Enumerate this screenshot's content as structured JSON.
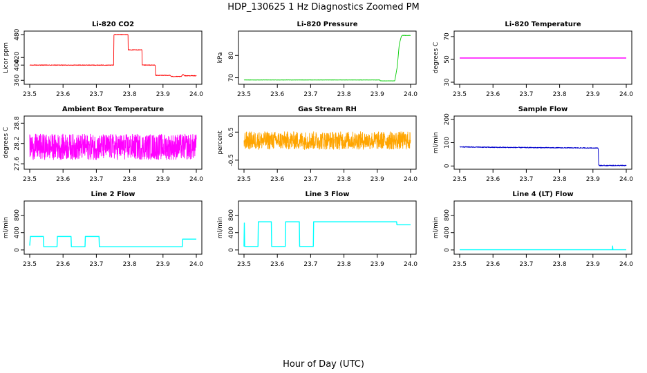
{
  "figure": {
    "title": "HDP_130625  1 Hz Diagnostics Zoomed PM",
    "xlabel": "Hour of Day (UTC)"
  },
  "chart_data": [
    {
      "type": "line",
      "title": "Li-820 CO2",
      "ylabel": "Licor ppm",
      "color": "#ff0000",
      "xlim": [
        23.5,
        24.0
      ],
      "ylim": [
        355,
        484
      ],
      "xticks": [
        23.5,
        23.6,
        23.7,
        23.8,
        23.9,
        24.0
      ],
      "xtick_labels": [
        "23.5",
        "23.6",
        "23.7",
        "23.8",
        "23.9",
        "24.0"
      ],
      "yticks": [
        360,
        400,
        420,
        480
      ],
      "ytick_labels": [
        "360",
        "400",
        "420",
        "480"
      ],
      "noise": 0.8,
      "x": [
        23.5,
        23.752,
        23.7525,
        23.795,
        23.7955,
        23.837,
        23.8375,
        23.877,
        23.8775,
        23.922,
        23.925,
        23.955,
        23.96,
        23.965,
        24.0
      ],
      "y": [
        400,
        400,
        480,
        480,
        440,
        440,
        400,
        400,
        373,
        373,
        370,
        370,
        376,
        372,
        372
      ]
    },
    {
      "type": "line",
      "title": "Li-820 Pressure",
      "ylabel": "kPa",
      "color": "#00cc00",
      "xlim": [
        23.5,
        24.0
      ],
      "ylim": [
        68,
        90
      ],
      "xticks": [
        23.5,
        23.6,
        23.7,
        23.8,
        23.9,
        24.0
      ],
      "xtick_labels": [
        "23.5",
        "23.6",
        "23.7",
        "23.8",
        "23.9",
        "24.0"
      ],
      "yticks": [
        70,
        80
      ],
      "ytick_labels": [
        "70",
        "80"
      ],
      "noise": 0.05,
      "x": [
        23.5,
        23.908,
        23.909,
        23.952,
        23.953,
        23.96,
        23.966,
        23.972,
        23.975,
        23.985,
        24.0
      ],
      "y": [
        69.0,
        69.0,
        68.6,
        68.6,
        69.0,
        75,
        85,
        88.5,
        89.0,
        89.0,
        89.0
      ]
    },
    {
      "type": "line",
      "title": "Li-820 Temperature",
      "ylabel": "degrees C",
      "color": "#ff00ff",
      "xlim": [
        23.5,
        24.0
      ],
      "ylim": [
        30,
        73
      ],
      "xticks": [
        23.5,
        23.6,
        23.7,
        23.8,
        23.9,
        24.0
      ],
      "xtick_labels": [
        "23.5",
        "23.6",
        "23.7",
        "23.8",
        "23.9",
        "24.0"
      ],
      "yticks": [
        30,
        50,
        70
      ],
      "ytick_labels": [
        "30",
        "50",
        "70"
      ],
      "noise": 0,
      "x": [
        23.5,
        24.0
      ],
      "y": [
        51.2,
        51.2
      ]
    },
    {
      "type": "line",
      "title": "Ambient Box Temperature",
      "ylabel": "degrees C",
      "color": "#ff00ff",
      "xlim": [
        23.5,
        24.0
      ],
      "ylim": [
        27.5,
        28.95
      ],
      "xticks": [
        23.5,
        23.6,
        23.7,
        23.8,
        23.9,
        24.0
      ],
      "xtick_labels": [
        "23.5",
        "23.6",
        "23.7",
        "23.8",
        "23.9",
        "24.0"
      ],
      "yticks": [
        27.6,
        28.2,
        28.8
      ],
      "ytick_labels": [
        "27.6",
        "28.2",
        "28.8"
      ],
      "noise": 0.38,
      "x": [
        23.5,
        24.0
      ],
      "y": [
        28.1,
        28.1
      ]
    },
    {
      "type": "line",
      "title": "Gas Stream RH",
      "ylabel": "percent",
      "color": "#ffa500",
      "xlim": [
        23.5,
        24.0
      ],
      "ylim": [
        -0.75,
        1.0
      ],
      "xticks": [
        23.5,
        23.6,
        23.7,
        23.8,
        23.9,
        24.0
      ],
      "xtick_labels": [
        "23.5",
        "23.6",
        "23.7",
        "23.8",
        "23.9",
        "24.0"
      ],
      "yticks": [
        -0.5,
        0.5
      ],
      "ytick_labels": [
        "-0.5",
        "0.5"
      ],
      "noise": 0.32,
      "x": [
        23.5,
        24.0
      ],
      "y": [
        0.2,
        0.2
      ]
    },
    {
      "type": "line",
      "title": "Sample Flow",
      "ylabel": "ml/min",
      "color": "#0000cc",
      "xlim": [
        23.5,
        24.0
      ],
      "ylim": [
        -5,
        205
      ],
      "xticks": [
        23.5,
        23.6,
        23.7,
        23.8,
        23.9,
        24.0
      ],
      "xtick_labels": [
        "23.5",
        "23.6",
        "23.7",
        "23.8",
        "23.9",
        "24.0"
      ],
      "yticks": [
        0,
        100,
        200
      ],
      "ytick_labels": [
        "0",
        "100",
        "200"
      ],
      "noise": 2.0,
      "x": [
        23.5,
        23.6,
        23.7,
        23.8,
        23.916,
        23.917,
        23.92,
        24.0
      ],
      "y": [
        82,
        80,
        79,
        78,
        77,
        4,
        2,
        2
      ]
    },
    {
      "type": "line",
      "title": "Line 2 Flow",
      "ylabel": "ml/min",
      "color": "#00ffff",
      "xlim": [
        23.5,
        24.0
      ],
      "ylim": [
        -50,
        1080
      ],
      "xticks": [
        23.5,
        23.6,
        23.7,
        23.8,
        23.9,
        24.0
      ],
      "xtick_labels": [
        "23.5",
        "23.6",
        "23.7",
        "23.8",
        "23.9",
        "24.0"
      ],
      "yticks": [
        0,
        400,
        800
      ],
      "ytick_labels": [
        "0",
        "400",
        "800"
      ],
      "noise": 0,
      "x": [
        23.5,
        23.502,
        23.541,
        23.542,
        23.582,
        23.583,
        23.624,
        23.625,
        23.666,
        23.667,
        23.708,
        23.709,
        23.958,
        23.959,
        24.0
      ],
      "y": [
        100,
        310,
        310,
        75,
        75,
        310,
        310,
        75,
        75,
        310,
        310,
        75,
        75,
        250,
        250
      ]
    },
    {
      "type": "line",
      "title": "Line 3 Flow",
      "ylabel": "ml/min",
      "color": "#00ffff",
      "xlim": [
        23.5,
        24.0
      ],
      "ylim": [
        -50,
        1080
      ],
      "xticks": [
        23.5,
        23.6,
        23.7,
        23.8,
        23.9,
        24.0
      ],
      "xtick_labels": [
        "23.5",
        "23.6",
        "23.7",
        "23.8",
        "23.9",
        "24.0"
      ],
      "yticks": [
        0,
        400,
        800
      ],
      "ytick_labels": [
        "0",
        "400",
        "800"
      ],
      "noise": 0,
      "x": [
        23.5,
        23.501,
        23.502,
        23.542,
        23.543,
        23.582,
        23.583,
        23.624,
        23.625,
        23.666,
        23.667,
        23.708,
        23.709,
        23.958,
        23.959,
        24.0
      ],
      "y": [
        80,
        620,
        80,
        80,
        650,
        650,
        80,
        80,
        650,
        650,
        80,
        80,
        650,
        650,
        580,
        580
      ]
    },
    {
      "type": "line",
      "title": "Line 4 (LT) Flow",
      "ylabel": "ml/min",
      "color": "#00ffff",
      "xlim": [
        23.5,
        24.0
      ],
      "ylim": [
        -50,
        1080
      ],
      "xticks": [
        23.5,
        23.6,
        23.7,
        23.8,
        23.9,
        24.0
      ],
      "xtick_labels": [
        "23.5",
        "23.6",
        "23.7",
        "23.8",
        "23.9",
        "24.0"
      ],
      "yticks": [
        0,
        400,
        800
      ],
      "ytick_labels": [
        "0",
        "400",
        "800"
      ],
      "noise": 0,
      "x": [
        23.5,
        23.958,
        23.959,
        23.96,
        23.961,
        24.0
      ],
      "y": [
        5,
        5,
        90,
        5,
        5,
        5
      ]
    }
  ]
}
